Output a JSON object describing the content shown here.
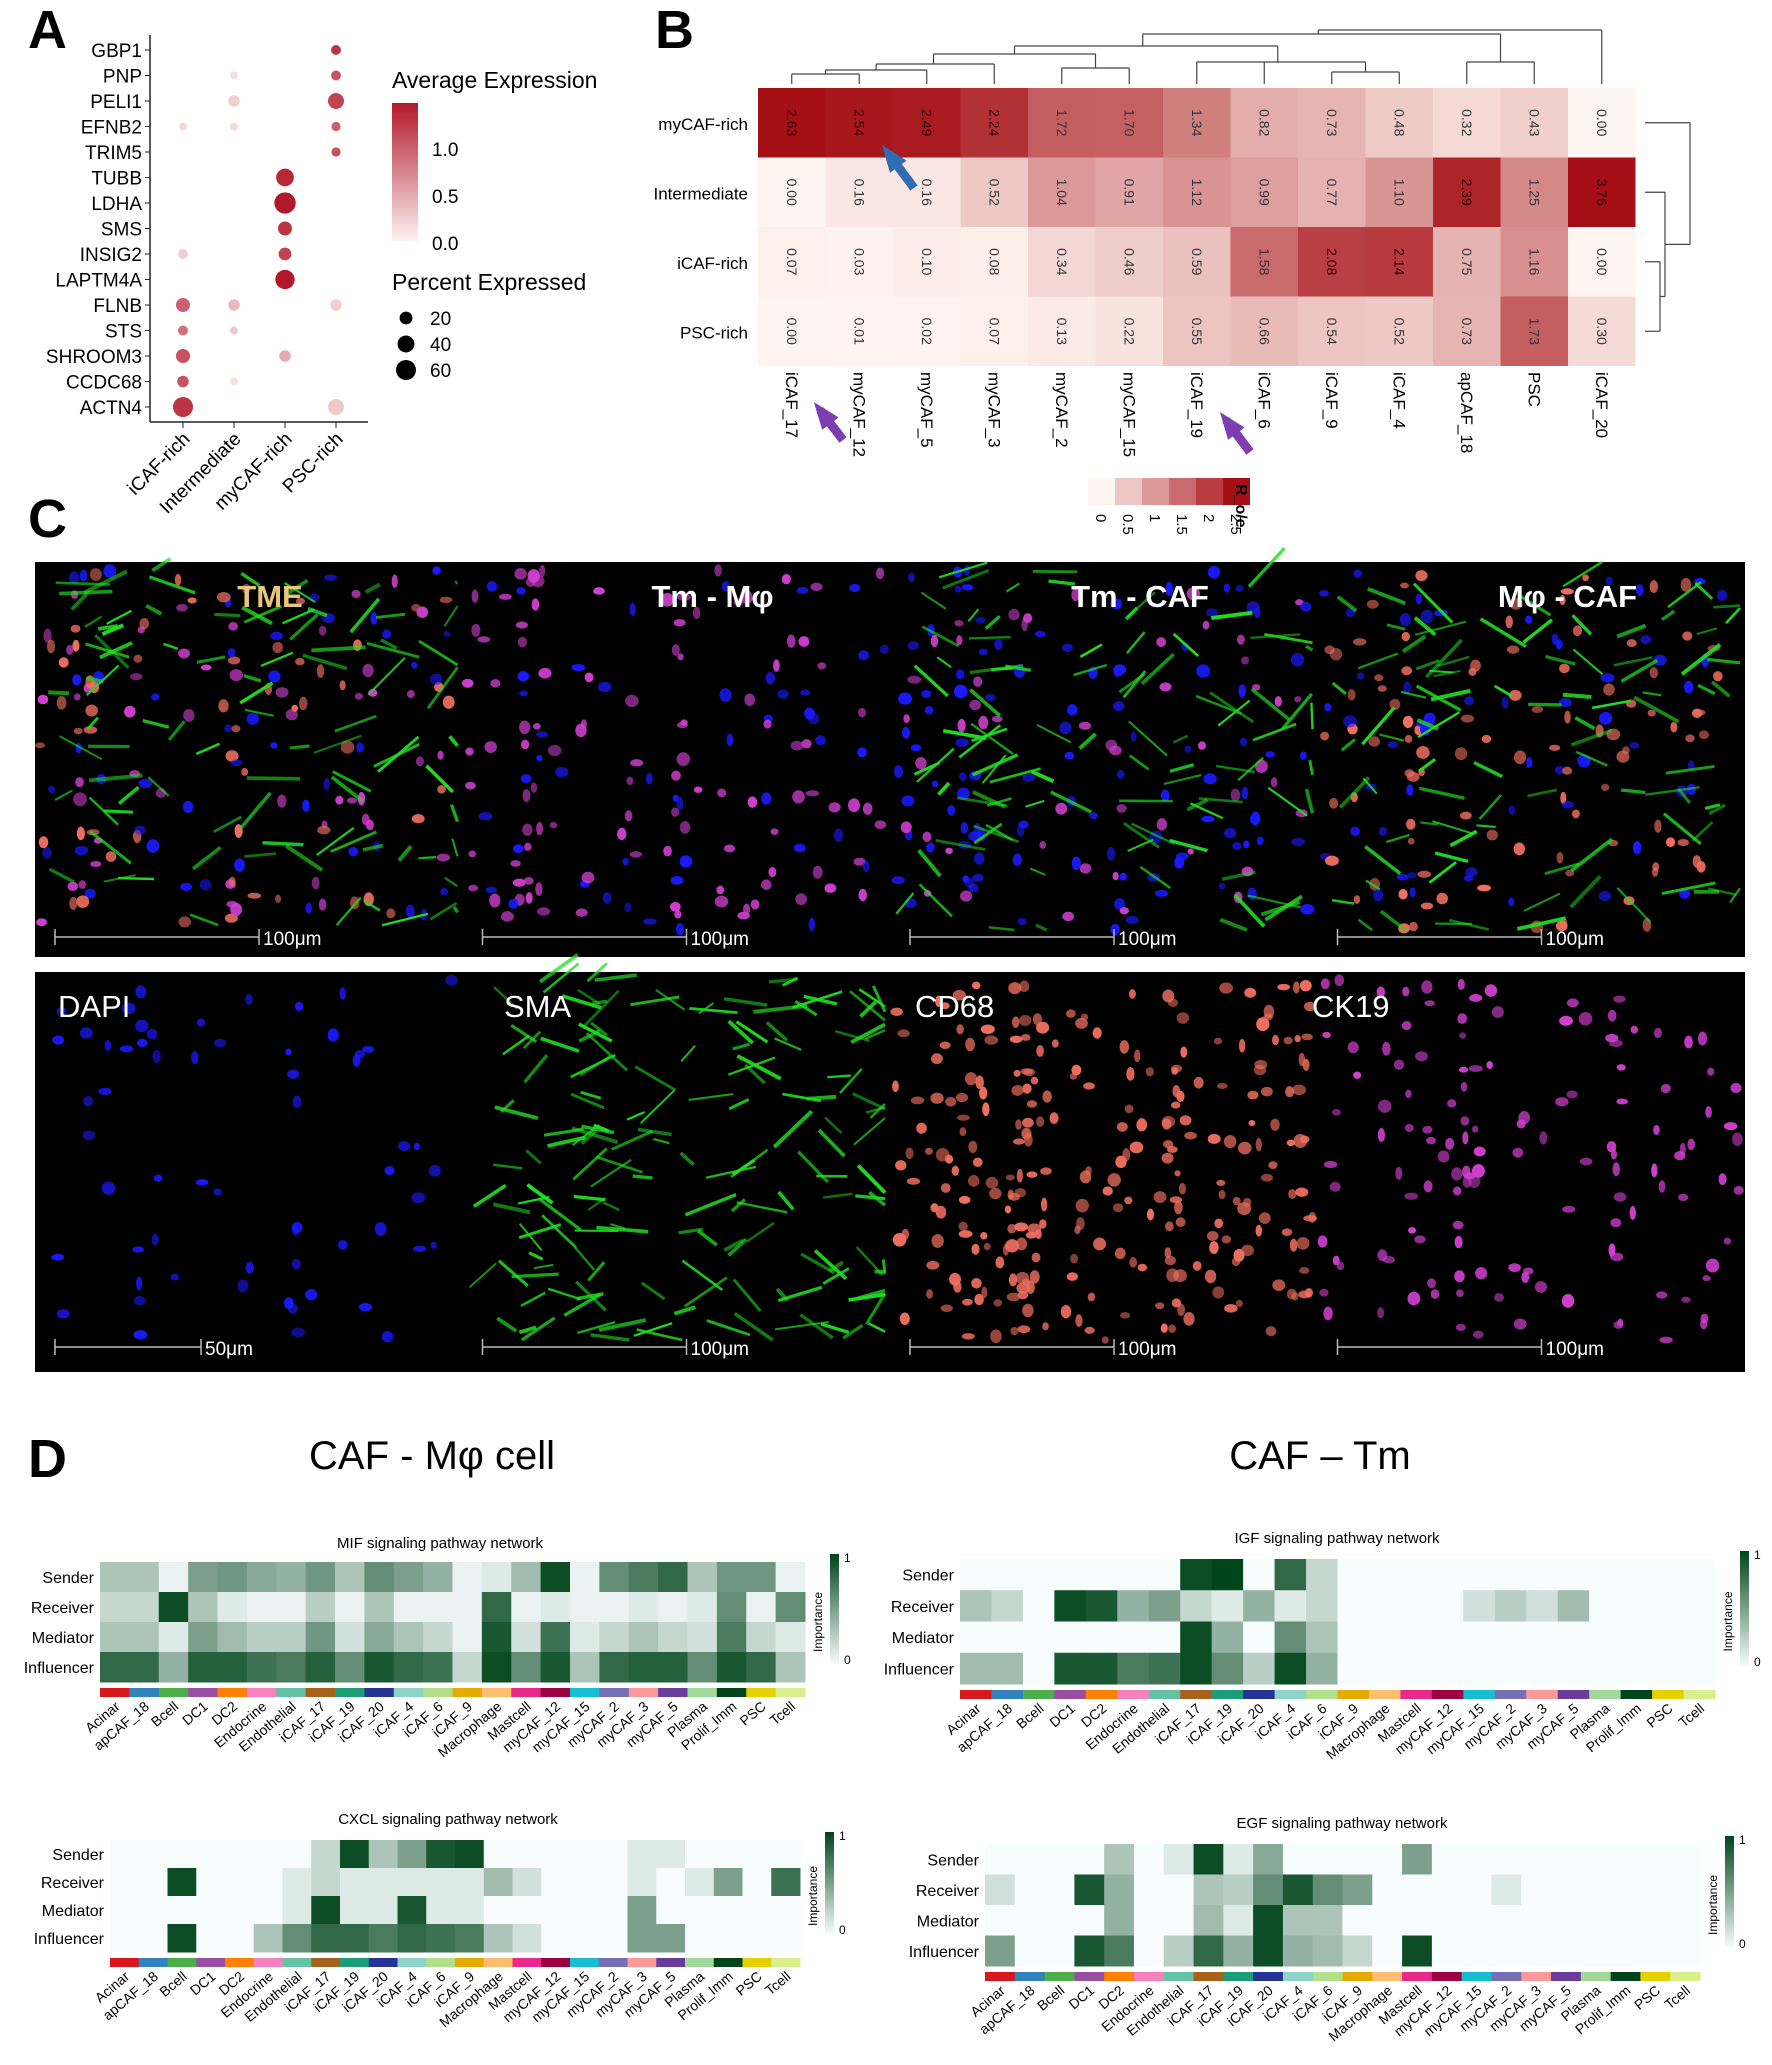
{
  "panels": {
    "a": "A",
    "b": "B",
    "c": "C",
    "d": "D"
  },
  "colors": {
    "dot": "#b2182b",
    "heat_high": "#a50f15",
    "heat_low": "#fff5f0",
    "imp_high": "#00441b",
    "imp_low": "#f7fcfd",
    "dapi": "#1a1aff",
    "sma": "#22dd22",
    "cd68": "#f07060",
    "ck19": "#d040d0"
  },
  "chart_data": [
    {
      "type": "scatter",
      "subtype": "dot-plot",
      "genes": [
        "GBP1",
        "PNP",
        "PELI1",
        "EFNB2",
        "TRIM5",
        "TUBB",
        "LDHA",
        "SMS",
        "INSIG2",
        "LAPTM4A",
        "FLNB",
        "STS",
        "SHROOM3",
        "CCDC68",
        "ACTN4"
      ],
      "groups": [
        "iCAF-rich",
        "Intermediate",
        "myCAF-rich",
        "PSC-rich"
      ],
      "avg_expression": [
        [
          0.0,
          0.0,
          0.0,
          1.2
        ],
        [
          0.0,
          0.05,
          0.0,
          1.0
        ],
        [
          0.0,
          0.15,
          0.0,
          1.1
        ],
        [
          0.1,
          0.1,
          0.0,
          0.9
        ],
        [
          0.0,
          0.0,
          0.0,
          1.0
        ],
        [
          0.0,
          0.0,
          1.3,
          0.0
        ],
        [
          0.0,
          0.0,
          1.4,
          0.0
        ],
        [
          0.0,
          0.0,
          1.2,
          0.0
        ],
        [
          0.15,
          0.0,
          1.1,
          0.0
        ],
        [
          0.0,
          0.0,
          1.4,
          0.0
        ],
        [
          0.9,
          0.3,
          0.0,
          0.15
        ],
        [
          0.8,
          0.2,
          0.0,
          0.0
        ],
        [
          1.0,
          0.0,
          0.4,
          0.0
        ],
        [
          1.0,
          0.05,
          0.0,
          0.0
        ],
        [
          1.2,
          0.0,
          0.0,
          0.2
        ]
      ],
      "pct_expressed": [
        [
          0,
          0,
          0,
          10
        ],
        [
          0,
          5,
          0,
          10
        ],
        [
          0,
          15,
          0,
          35
        ],
        [
          5,
          5,
          0,
          8
        ],
        [
          0,
          0,
          0,
          8
        ],
        [
          0,
          0,
          45,
          0
        ],
        [
          0,
          0,
          70,
          0
        ],
        [
          0,
          0,
          25,
          0
        ],
        [
          10,
          0,
          20,
          0
        ],
        [
          0,
          0,
          55,
          0
        ],
        [
          25,
          15,
          0,
          15
        ],
        [
          10,
          5,
          0,
          0
        ],
        [
          25,
          0,
          15,
          0
        ],
        [
          15,
          5,
          0,
          0
        ],
        [
          60,
          0,
          0,
          35
        ]
      ],
      "legend_color_title": "Average Expression",
      "legend_color_ticks": [
        "1.0",
        "0.5",
        "0.0"
      ],
      "legend_size_title": "Percent Expressed",
      "legend_size_values": [
        "20",
        "40",
        "60"
      ]
    },
    {
      "type": "heatmap",
      "rows": [
        "myCAF-rich",
        "Intermediate",
        "iCAF-rich",
        "PSC-rich"
      ],
      "cols": [
        "iCAF_17",
        "myCAF_12",
        "myCAF_5",
        "myCAF_3",
        "myCAF_2",
        "myCAF_15",
        "iCAF_19",
        "iCAF_6",
        "iCAF_9",
        "iCAF_4",
        "apCAF_18",
        "PSC",
        "iCAF_20"
      ],
      "values": [
        [
          2.63,
          2.54,
          2.49,
          2.24,
          1.72,
          1.7,
          1.34,
          0.82,
          0.73,
          0.48,
          0.32,
          0.43,
          0.0
        ],
        [
          0.0,
          0.16,
          0.16,
          0.52,
          1.04,
          0.91,
          1.12,
          0.99,
          0.77,
          1.1,
          2.39,
          1.25,
          3.76
        ],
        [
          0.07,
          0.03,
          0.1,
          0.08,
          0.34,
          0.46,
          0.59,
          1.58,
          2.08,
          2.14,
          0.75,
          1.16,
          0.0
        ],
        [
          0.0,
          0.01,
          0.02,
          0.07,
          0.13,
          0.22,
          0.55,
          0.66,
          0.54,
          0.52,
          0.73,
          1.73,
          0.3
        ]
      ],
      "legend_title": "R_o/e",
      "legend_ticks": [
        "0",
        "0.5",
        "1",
        "1.5",
        "2",
        "2.5"
      ]
    },
    {
      "type": "heatmap",
      "title": "MIF signaling pathway network",
      "rows": [
        "Sender",
        "Receiver",
        "Mediator",
        "Influencer"
      ],
      "cols": [
        "Acinar",
        "apCAF_18",
        "Bcell",
        "DC1",
        "DC2",
        "Endocrine",
        "Endothelial",
        "iCAF_17",
        "iCAF_19",
        "iCAF_20",
        "iCAF_4",
        "iCAF_6",
        "iCAF_9",
        "Macrophage",
        "Mastcell",
        "myCAF_12",
        "myCAF_15",
        "myCAF_2",
        "myCAF_3",
        "myCAF_5",
        "Plasma",
        "Prolif_Imm",
        "PSC",
        "Tcell"
      ],
      "values": [
        [
          0.3,
          0.3,
          0.05,
          0.5,
          0.55,
          0.45,
          0.4,
          0.55,
          0.3,
          0.6,
          0.5,
          0.4,
          0.05,
          0.1,
          0.35,
          0.95,
          0.05,
          0.6,
          0.7,
          0.8,
          0.3,
          0.55,
          0.55,
          0.05
        ],
        [
          0.2,
          0.2,
          0.95,
          0.3,
          0.1,
          0.05,
          0.05,
          0.25,
          0.05,
          0.3,
          0.05,
          0.05,
          0.05,
          0.8,
          0.05,
          0.1,
          0.05,
          0.05,
          0.1,
          0.05,
          0.1,
          0.6,
          0.05,
          0.6
        ],
        [
          0.3,
          0.3,
          0.1,
          0.5,
          0.35,
          0.25,
          0.25,
          0.55,
          0.15,
          0.45,
          0.3,
          0.2,
          0.05,
          0.9,
          0.15,
          0.75,
          0.1,
          0.2,
          0.3,
          0.2,
          0.15,
          0.7,
          0.2,
          0.1
        ],
        [
          0.8,
          0.8,
          0.4,
          0.85,
          0.85,
          0.75,
          0.7,
          0.85,
          0.6,
          0.9,
          0.8,
          0.75,
          0.2,
          0.95,
          0.6,
          0.9,
          0.3,
          0.8,
          0.85,
          0.85,
          0.6,
          0.9,
          0.8,
          0.3
        ]
      ],
      "legend_title": "Importance",
      "legend_ticks": [
        "1",
        "0"
      ]
    },
    {
      "type": "heatmap",
      "title": "IGF signaling pathway network",
      "rows": [
        "Sender",
        "Receiver",
        "Mediator",
        "Influencer"
      ],
      "cols": [
        "Acinar",
        "apCAF_18",
        "Bcell",
        "DC1",
        "DC2",
        "Endocrine",
        "Endothelial",
        "iCAF_17",
        "iCAF_19",
        "iCAF_20",
        "iCAF_4",
        "iCAF_6",
        "iCAF_9",
        "Macrophage",
        "Mastcell",
        "myCAF_12",
        "myCAF_15",
        "myCAF_2",
        "myCAF_3",
        "myCAF_5",
        "Plasma",
        "Prolif_Imm",
        "PSC",
        "Tcell"
      ],
      "values": [
        [
          0,
          0,
          0,
          0,
          0,
          0,
          0,
          0.95,
          1.0,
          0,
          0.8,
          0.2,
          0,
          0,
          0,
          0,
          0,
          0,
          0,
          0,
          0,
          0,
          0,
          0
        ],
        [
          0.3,
          0.2,
          0,
          0.95,
          0.9,
          0.4,
          0.5,
          0.2,
          0.1,
          0.4,
          0.1,
          0.2,
          0,
          0,
          0,
          0,
          0.15,
          0.25,
          0.15,
          0.35,
          0,
          0,
          0,
          0
        ],
        [
          0,
          0,
          0,
          0,
          0,
          0,
          0,
          0.95,
          0.4,
          0,
          0.6,
          0.3,
          0,
          0,
          0,
          0,
          0,
          0,
          0,
          0,
          0,
          0,
          0,
          0
        ],
        [
          0.35,
          0.35,
          0,
          0.9,
          0.9,
          0.7,
          0.75,
          0.95,
          0.6,
          0.25,
          0.95,
          0.4,
          0,
          0,
          0,
          0,
          0,
          0,
          0,
          0,
          0,
          0,
          0,
          0
        ]
      ],
      "legend_title": "Importance",
      "legend_ticks": [
        "1",
        "0"
      ]
    },
    {
      "type": "heatmap",
      "title": "CXCL signaling pathway network",
      "rows": [
        "Sender",
        "Receiver",
        "Mediator",
        "Influencer"
      ],
      "cols": [
        "Acinar",
        "apCAF_18",
        "Bcell",
        "DC1",
        "DC2",
        "Endocrine",
        "Endothelial",
        "iCAF_17",
        "iCAF_19",
        "iCAF_20",
        "iCAF_4",
        "iCAF_6",
        "iCAF_9",
        "Macrophage",
        "Mastcell",
        "myCAF_12",
        "myCAF_15",
        "myCAF_2",
        "myCAF_3",
        "myCAF_5",
        "Plasma",
        "Prolif_Imm",
        "PSC",
        "Tcell"
      ],
      "values": [
        [
          0,
          0,
          0,
          0,
          0,
          0,
          0,
          0.2,
          0.95,
          0.3,
          0.5,
          0.9,
          0.95,
          0,
          0,
          0,
          0,
          0,
          0.1,
          0.1,
          0,
          0,
          0,
          0
        ],
        [
          0,
          0,
          0.95,
          0,
          0,
          0,
          0.1,
          0.2,
          0.1,
          0.1,
          0.1,
          0.1,
          0.1,
          0.35,
          0.15,
          0,
          0,
          0,
          0.1,
          0,
          0.1,
          0.5,
          0,
          0.75
        ],
        [
          0,
          0,
          0,
          0,
          0,
          0,
          0.1,
          0.95,
          0.1,
          0.1,
          0.9,
          0.1,
          0.1,
          0,
          0,
          0,
          0,
          0,
          0.5,
          0,
          0,
          0,
          0,
          0
        ],
        [
          0,
          0,
          0.95,
          0,
          0,
          0.3,
          0.6,
          0.8,
          0.8,
          0.7,
          0.8,
          0.75,
          0.7,
          0.3,
          0.15,
          0,
          0,
          0,
          0.5,
          0.5,
          0,
          0,
          0,
          0
        ]
      ],
      "legend_title": "Importance",
      "legend_ticks": [
        "1",
        "0"
      ]
    },
    {
      "type": "heatmap",
      "title": "EGF signaling pathway network",
      "rows": [
        "Sender",
        "Receiver",
        "Mediator",
        "Influencer"
      ],
      "cols": [
        "Acinar",
        "apCAF_18",
        "Bcell",
        "DC1",
        "DC2",
        "Endocrine",
        "Endothelial",
        "iCAF_17",
        "iCAF_19",
        "iCAF_20",
        "iCAF_4",
        "iCAF_6",
        "iCAF_9",
        "Macrophage",
        "Mastcell",
        "myCAF_12",
        "myCAF_15",
        "myCAF_2",
        "myCAF_3",
        "myCAF_5",
        "Plasma",
        "Prolif_Imm",
        "PSC",
        "Tcell"
      ],
      "values": [
        [
          0,
          0,
          0,
          0,
          0.3,
          0,
          0.1,
          0.95,
          0.1,
          0.45,
          0,
          0,
          0,
          0,
          0.5,
          0,
          0,
          0,
          0,
          0,
          0,
          0,
          0,
          0
        ],
        [
          0.15,
          0,
          0,
          0.9,
          0.4,
          0,
          0,
          0.3,
          0.25,
          0.6,
          0.9,
          0.6,
          0.5,
          0,
          0,
          0,
          0,
          0.1,
          0,
          0,
          0,
          0,
          0,
          0
        ],
        [
          0,
          0,
          0,
          0,
          0.4,
          0,
          0,
          0.35,
          0.1,
          0.95,
          0.3,
          0.3,
          0,
          0,
          0,
          0,
          0,
          0,
          0,
          0,
          0,
          0,
          0,
          0
        ],
        [
          0.5,
          0,
          0,
          0.9,
          0.7,
          0,
          0.25,
          0.8,
          0.4,
          0.95,
          0.4,
          0.35,
          0.2,
          0,
          0.95,
          0,
          0,
          0,
          0,
          0,
          0,
          0,
          0,
          0
        ]
      ],
      "legend_title": "Importance",
      "legend_ticks": [
        "1",
        "0"
      ]
    }
  ],
  "panel_c": {
    "top_labels": [
      "TME",
      "Tm - Mφ",
      "Tm - CAF",
      "Mφ - CAF"
    ],
    "bottom_labels": [
      "DAPI",
      "SMA",
      "CD68",
      "CK19"
    ],
    "top_scales": [
      "100μm",
      "100μm",
      "100μm",
      "100μm"
    ],
    "bottom_scales": [
      "50μm",
      "100μm",
      "100μm",
      "100μm"
    ]
  },
  "panel_d": {
    "left_title": "CAF - Mφ cell",
    "right_title": "CAF – Tm"
  }
}
